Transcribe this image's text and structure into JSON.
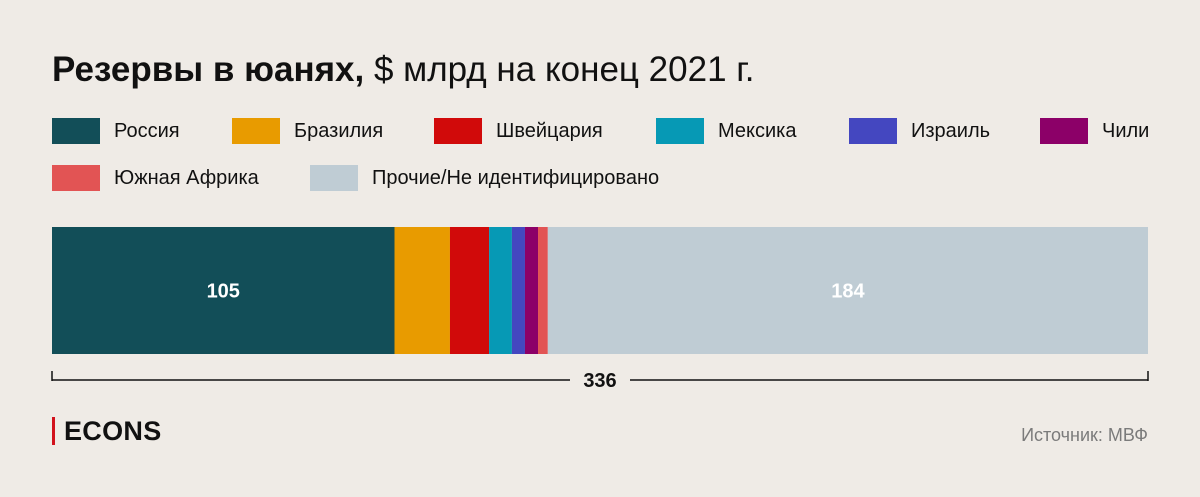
{
  "title": {
    "bold": "Резервы в юанях,",
    "rest": "$ млрд на конец 2021 г."
  },
  "chart_data": {
    "type": "bar",
    "orientation": "horizontal-stacked",
    "categories": [
      "Россия",
      "Бразилия",
      "Швейцария",
      "Мексика",
      "Израиль",
      "Чили",
      "Южная Африка",
      "Прочие/Не идентифицировано"
    ],
    "values": [
      105,
      17,
      12,
      7,
      4,
      4,
      3,
      184
    ],
    "colors": [
      "#124e58",
      "#e89b00",
      "#d10a0a",
      "#0699b5",
      "#4447c0",
      "#8c0068",
      "#e25454",
      "#bfccd4"
    ],
    "data_labels": [
      "105",
      "",
      "",
      "",
      "",
      "",
      "",
      "184"
    ],
    "total": 336,
    "total_label": "336",
    "legend_position": "top"
  },
  "footer": {
    "logo": "ECONS",
    "source": "Источник: МВФ"
  }
}
